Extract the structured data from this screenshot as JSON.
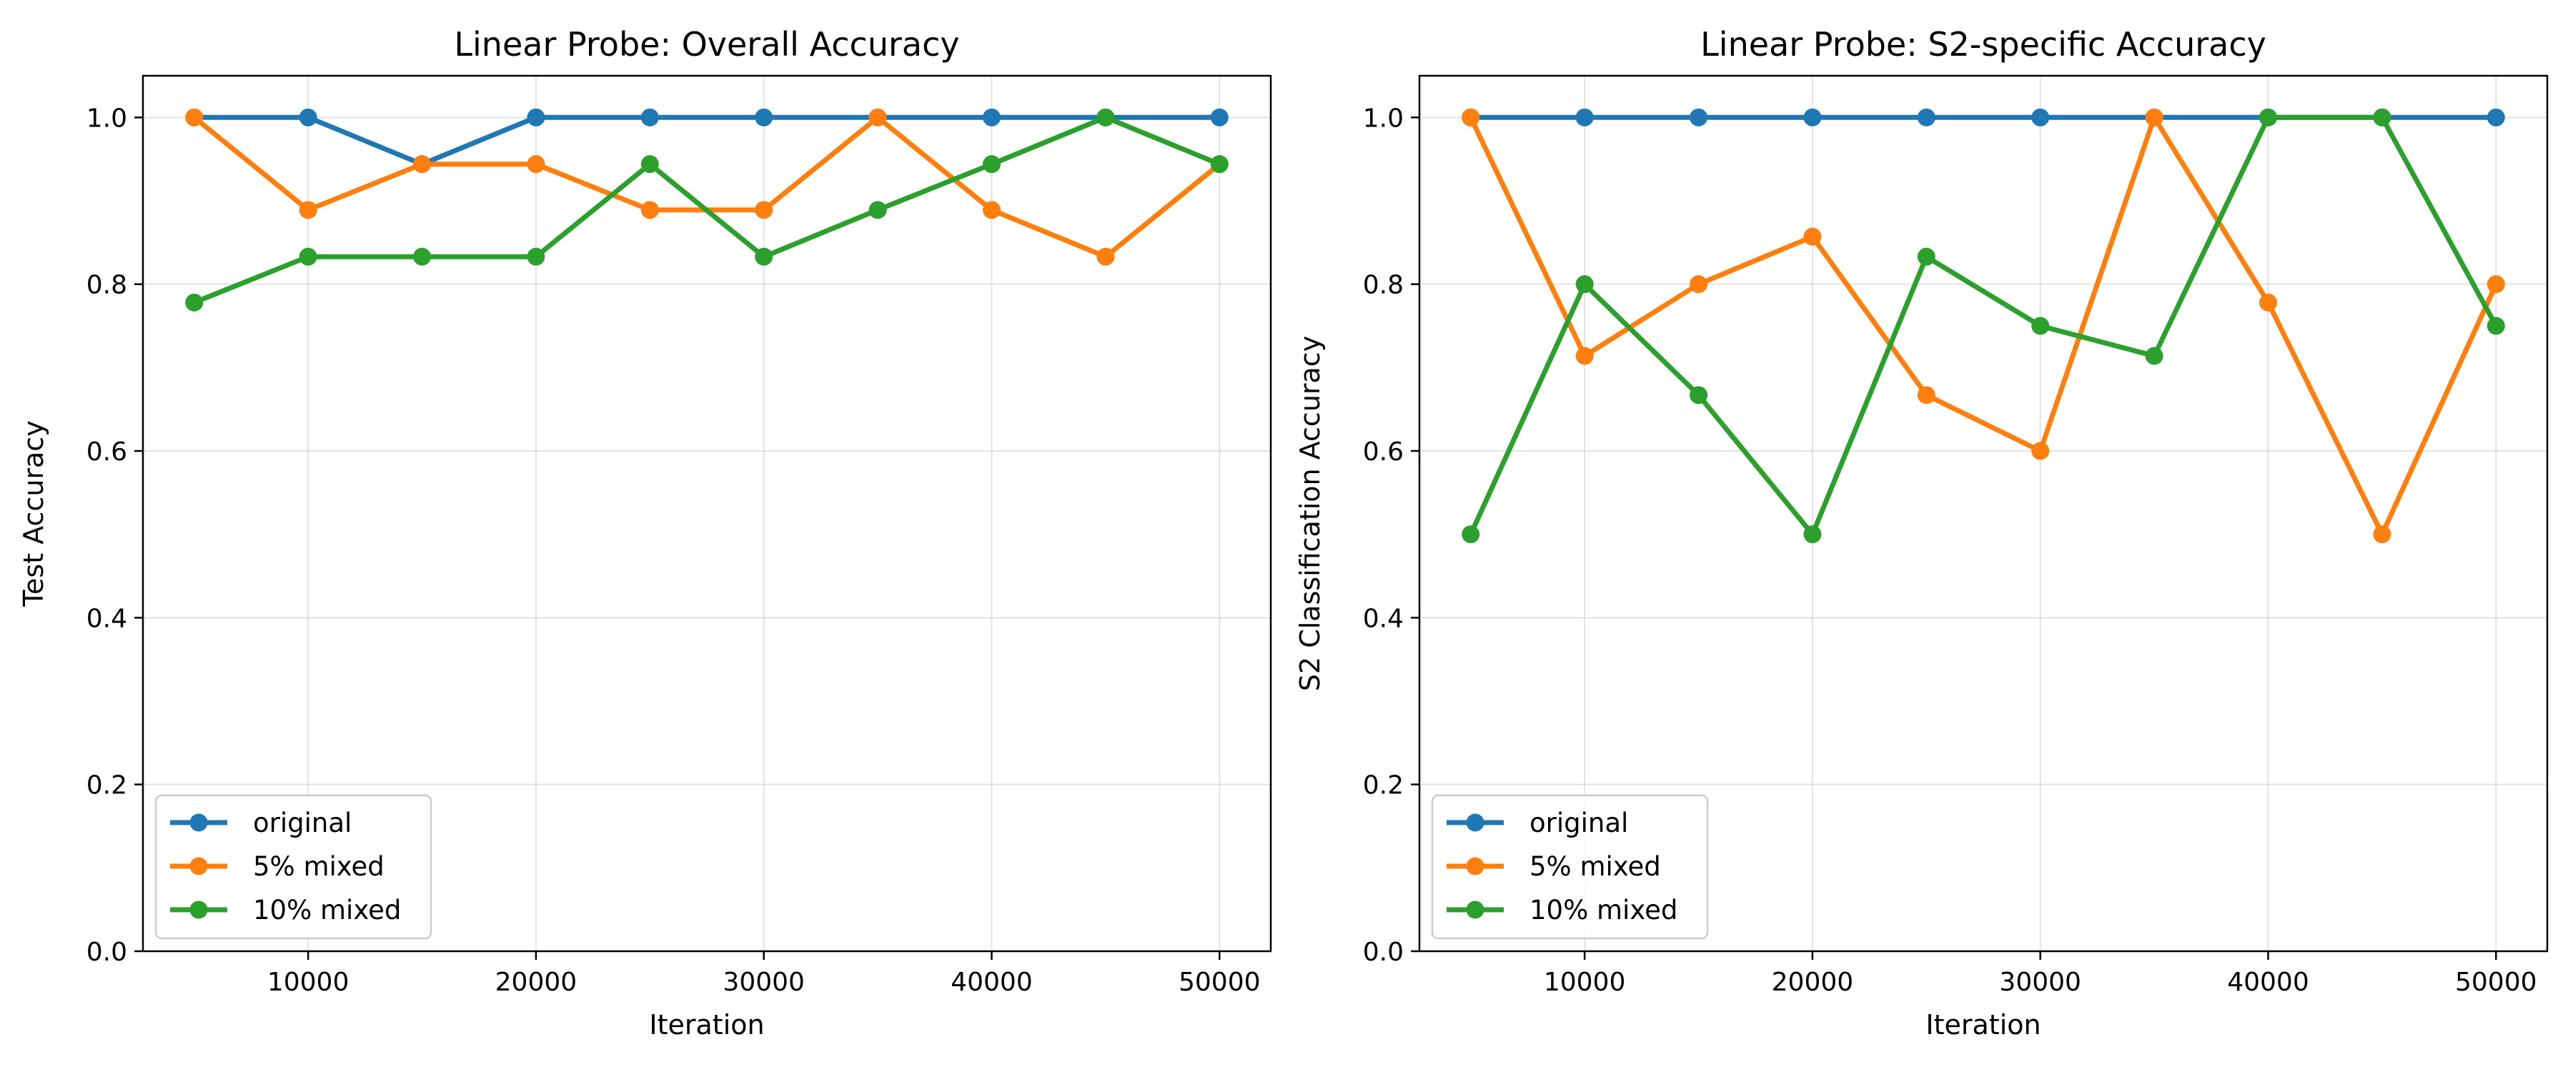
{
  "chart_data": [
    {
      "type": "line",
      "title": "Linear Probe: Overall Accuracy",
      "xlabel": "Iteration",
      "ylabel": "Test Accuracy",
      "xlim": [
        2750,
        52250
      ],
      "ylim": [
        0.0,
        1.05
      ],
      "xticks": [
        10000,
        20000,
        30000,
        40000,
        50000
      ],
      "xtick_labels": [
        "10000",
        "20000",
        "30000",
        "40000",
        "50000"
      ],
      "yticks": [
        0.0,
        0.2,
        0.4,
        0.6,
        0.8,
        1.0
      ],
      "ytick_labels": [
        "0.0",
        "0.2",
        "0.4",
        "0.6",
        "0.8",
        "1.0"
      ],
      "grid": true,
      "legend_position": "lower-left",
      "x": [
        5000,
        10000,
        15000,
        20000,
        25000,
        30000,
        35000,
        40000,
        45000,
        50000
      ],
      "series": [
        {
          "name": "original",
          "color": "#1f77b4",
          "values": [
            1.0,
            1.0,
            0.944,
            1.0,
            1.0,
            1.0,
            1.0,
            1.0,
            1.0,
            1.0
          ]
        },
        {
          "name": "5% mixed",
          "color": "#ff7f0e",
          "values": [
            1.0,
            0.889,
            0.944,
            0.944,
            0.889,
            0.889,
            1.0,
            0.889,
            0.833,
            0.944
          ]
        },
        {
          "name": "10% mixed",
          "color": "#2ca02c",
          "values": [
            0.778,
            0.833,
            0.833,
            0.833,
            0.944,
            0.833,
            0.889,
            0.944,
            1.0,
            0.944
          ]
        }
      ]
    },
    {
      "type": "line",
      "title": "Linear Probe: S2-specific Accuracy",
      "xlabel": "Iteration",
      "ylabel": "S2 Classification Accuracy",
      "xlim": [
        2750,
        52250
      ],
      "ylim": [
        0.0,
        1.05
      ],
      "xticks": [
        10000,
        20000,
        30000,
        40000,
        50000
      ],
      "xtick_labels": [
        "10000",
        "20000",
        "30000",
        "40000",
        "50000"
      ],
      "yticks": [
        0.0,
        0.2,
        0.4,
        0.6,
        0.8,
        1.0
      ],
      "ytick_labels": [
        "0.0",
        "0.2",
        "0.4",
        "0.6",
        "0.8",
        "1.0"
      ],
      "grid": true,
      "legend_position": "lower-left",
      "x": [
        5000,
        10000,
        15000,
        20000,
        25000,
        30000,
        35000,
        40000,
        45000,
        50000
      ],
      "series": [
        {
          "name": "original",
          "color": "#1f77b4",
          "values": [
            1.0,
            1.0,
            1.0,
            1.0,
            1.0,
            1.0,
            1.0,
            1.0,
            1.0,
            1.0
          ]
        },
        {
          "name": "5% mixed",
          "color": "#ff7f0e",
          "values": [
            1.0,
            0.714,
            0.8,
            0.857,
            0.667,
            0.6,
            1.0,
            0.778,
            0.5,
            0.8
          ]
        },
        {
          "name": "10% mixed",
          "color": "#2ca02c",
          "values": [
            0.5,
            0.8,
            0.667,
            0.5,
            0.833,
            0.75,
            0.714,
            1.0,
            1.0,
            0.75
          ]
        }
      ]
    }
  ]
}
